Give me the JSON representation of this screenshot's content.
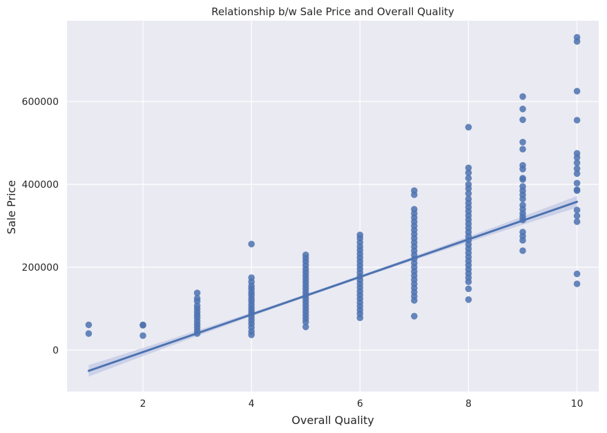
{
  "chart_data": {
    "type": "scatter",
    "title": "Relationship b/w Sale Price and Overall Quality",
    "xlabel": "Overall Quality",
    "ylabel": "Sale Price",
    "xlim": [
      0.6,
      10.4
    ],
    "ylim": [
      -100000,
      795000
    ],
    "xticks": [
      "2",
      "4",
      "6",
      "8",
      "10"
    ],
    "yticks": [
      "0",
      "200000",
      "400000",
      "600000"
    ],
    "grid": true,
    "legend": "none",
    "colors": {
      "background": "#eaeaf2",
      "grid": "#ffffff",
      "marker": "#4c72b0",
      "line": "#4c72b0",
      "band": "#c5cde6"
    },
    "regression": {
      "x": [
        1,
        10
      ],
      "y": [
        -50000,
        358000
      ],
      "ci_width_ends": 14000,
      "ci_width_mid": 3500
    },
    "points": [
      {
        "x": 1,
        "y": 61000
      },
      {
        "x": 1,
        "y": 40000
      },
      {
        "x": 2,
        "y": 60000
      },
      {
        "x": 2,
        "y": 35000
      },
      {
        "x": 2,
        "y": 61000
      },
      {
        "x": 3,
        "y": 138000
      },
      {
        "x": 3,
        "y": 125000
      },
      {
        "x": 3,
        "y": 118000
      },
      {
        "x": 3,
        "y": 107000
      },
      {
        "x": 3,
        "y": 100000
      },
      {
        "x": 3,
        "y": 92000
      },
      {
        "x": 3,
        "y": 85000
      },
      {
        "x": 3,
        "y": 78000
      },
      {
        "x": 3,
        "y": 70000
      },
      {
        "x": 3,
        "y": 62000
      },
      {
        "x": 3,
        "y": 55000
      },
      {
        "x": 3,
        "y": 47000
      },
      {
        "x": 3,
        "y": 40000
      },
      {
        "x": 4,
        "y": 256000
      },
      {
        "x": 4,
        "y": 175000
      },
      {
        "x": 4,
        "y": 165000
      },
      {
        "x": 4,
        "y": 155000
      },
      {
        "x": 4,
        "y": 148000
      },
      {
        "x": 4,
        "y": 140000
      },
      {
        "x": 4,
        "y": 133000
      },
      {
        "x": 4,
        "y": 125000
      },
      {
        "x": 4,
        "y": 118000
      },
      {
        "x": 4,
        "y": 110000
      },
      {
        "x": 4,
        "y": 102000
      },
      {
        "x": 4,
        "y": 95000
      },
      {
        "x": 4,
        "y": 88000
      },
      {
        "x": 4,
        "y": 80000
      },
      {
        "x": 4,
        "y": 72000
      },
      {
        "x": 4,
        "y": 64000
      },
      {
        "x": 4,
        "y": 55000
      },
      {
        "x": 4,
        "y": 45000
      },
      {
        "x": 4,
        "y": 37000
      },
      {
        "x": 5,
        "y": 230000
      },
      {
        "x": 5,
        "y": 222000
      },
      {
        "x": 5,
        "y": 214000
      },
      {
        "x": 5,
        "y": 205000
      },
      {
        "x": 5,
        "y": 196000
      },
      {
        "x": 5,
        "y": 188000
      },
      {
        "x": 5,
        "y": 180000
      },
      {
        "x": 5,
        "y": 172000
      },
      {
        "x": 5,
        "y": 164000
      },
      {
        "x": 5,
        "y": 156000
      },
      {
        "x": 5,
        "y": 148000
      },
      {
        "x": 5,
        "y": 140000
      },
      {
        "x": 5,
        "y": 132000
      },
      {
        "x": 5,
        "y": 124000
      },
      {
        "x": 5,
        "y": 116000
      },
      {
        "x": 5,
        "y": 108000
      },
      {
        "x": 5,
        "y": 100000
      },
      {
        "x": 5,
        "y": 92000
      },
      {
        "x": 5,
        "y": 84000
      },
      {
        "x": 5,
        "y": 76000
      },
      {
        "x": 5,
        "y": 68000
      },
      {
        "x": 5,
        "y": 56000
      },
      {
        "x": 6,
        "y": 278000
      },
      {
        "x": 6,
        "y": 270000
      },
      {
        "x": 6,
        "y": 260000
      },
      {
        "x": 6,
        "y": 250000
      },
      {
        "x": 6,
        "y": 241000
      },
      {
        "x": 6,
        "y": 232000
      },
      {
        "x": 6,
        "y": 223000
      },
      {
        "x": 6,
        "y": 214000
      },
      {
        "x": 6,
        "y": 205000
      },
      {
        "x": 6,
        "y": 196000
      },
      {
        "x": 6,
        "y": 187000
      },
      {
        "x": 6,
        "y": 178000
      },
      {
        "x": 6,
        "y": 169000
      },
      {
        "x": 6,
        "y": 160000
      },
      {
        "x": 6,
        "y": 151000
      },
      {
        "x": 6,
        "y": 142000
      },
      {
        "x": 6,
        "y": 133000
      },
      {
        "x": 6,
        "y": 124000
      },
      {
        "x": 6,
        "y": 115000
      },
      {
        "x": 6,
        "y": 106000
      },
      {
        "x": 6,
        "y": 97000
      },
      {
        "x": 6,
        "y": 88000
      },
      {
        "x": 6,
        "y": 78000
      },
      {
        "x": 7,
        "y": 385000
      },
      {
        "x": 7,
        "y": 375000
      },
      {
        "x": 7,
        "y": 340000
      },
      {
        "x": 7,
        "y": 330000
      },
      {
        "x": 7,
        "y": 320000
      },
      {
        "x": 7,
        "y": 310000
      },
      {
        "x": 7,
        "y": 300000
      },
      {
        "x": 7,
        "y": 290000
      },
      {
        "x": 7,
        "y": 280000
      },
      {
        "x": 7,
        "y": 270000
      },
      {
        "x": 7,
        "y": 260000
      },
      {
        "x": 7,
        "y": 250000
      },
      {
        "x": 7,
        "y": 240000
      },
      {
        "x": 7,
        "y": 230000
      },
      {
        "x": 7,
        "y": 220000
      },
      {
        "x": 7,
        "y": 210000
      },
      {
        "x": 7,
        "y": 200000
      },
      {
        "x": 7,
        "y": 190000
      },
      {
        "x": 7,
        "y": 180000
      },
      {
        "x": 7,
        "y": 170000
      },
      {
        "x": 7,
        "y": 160000
      },
      {
        "x": 7,
        "y": 150000
      },
      {
        "x": 7,
        "y": 140000
      },
      {
        "x": 7,
        "y": 130000
      },
      {
        "x": 7,
        "y": 120000
      },
      {
        "x": 7,
        "y": 82000
      },
      {
        "x": 8,
        "y": 538000
      },
      {
        "x": 8,
        "y": 440000
      },
      {
        "x": 8,
        "y": 428000
      },
      {
        "x": 8,
        "y": 415000
      },
      {
        "x": 8,
        "y": 400000
      },
      {
        "x": 8,
        "y": 390000
      },
      {
        "x": 8,
        "y": 378000
      },
      {
        "x": 8,
        "y": 365000
      },
      {
        "x": 8,
        "y": 355000
      },
      {
        "x": 8,
        "y": 345000
      },
      {
        "x": 8,
        "y": 335000
      },
      {
        "x": 8,
        "y": 325000
      },
      {
        "x": 8,
        "y": 315000
      },
      {
        "x": 8,
        "y": 305000
      },
      {
        "x": 8,
        "y": 295000
      },
      {
        "x": 8,
        "y": 285000
      },
      {
        "x": 8,
        "y": 275000
      },
      {
        "x": 8,
        "y": 265000
      },
      {
        "x": 8,
        "y": 255000
      },
      {
        "x": 8,
        "y": 245000
      },
      {
        "x": 8,
        "y": 235000
      },
      {
        "x": 8,
        "y": 225000
      },
      {
        "x": 8,
        "y": 215000
      },
      {
        "x": 8,
        "y": 205000
      },
      {
        "x": 8,
        "y": 195000
      },
      {
        "x": 8,
        "y": 185000
      },
      {
        "x": 8,
        "y": 175000
      },
      {
        "x": 8,
        "y": 165000
      },
      {
        "x": 8,
        "y": 148000
      },
      {
        "x": 8,
        "y": 122000
      },
      {
        "x": 9,
        "y": 612000
      },
      {
        "x": 9,
        "y": 582000
      },
      {
        "x": 9,
        "y": 556000
      },
      {
        "x": 9,
        "y": 502000
      },
      {
        "x": 9,
        "y": 485000
      },
      {
        "x": 9,
        "y": 446000
      },
      {
        "x": 9,
        "y": 437000
      },
      {
        "x": 9,
        "y": 415000
      },
      {
        "x": 9,
        "y": 412000
      },
      {
        "x": 9,
        "y": 395000
      },
      {
        "x": 9,
        "y": 385000
      },
      {
        "x": 9,
        "y": 375000
      },
      {
        "x": 9,
        "y": 365000
      },
      {
        "x": 9,
        "y": 350000
      },
      {
        "x": 9,
        "y": 340000
      },
      {
        "x": 9,
        "y": 330000
      },
      {
        "x": 9,
        "y": 322000
      },
      {
        "x": 9,
        "y": 314000
      },
      {
        "x": 9,
        "y": 285000
      },
      {
        "x": 9,
        "y": 275000
      },
      {
        "x": 9,
        "y": 265000
      },
      {
        "x": 9,
        "y": 240000
      },
      {
        "x": 10,
        "y": 755000
      },
      {
        "x": 10,
        "y": 745000
      },
      {
        "x": 10,
        "y": 625000
      },
      {
        "x": 10,
        "y": 555000
      },
      {
        "x": 10,
        "y": 475000
      },
      {
        "x": 10,
        "y": 465000
      },
      {
        "x": 10,
        "y": 452000
      },
      {
        "x": 10,
        "y": 438000
      },
      {
        "x": 10,
        "y": 426000
      },
      {
        "x": 10,
        "y": 403000
      },
      {
        "x": 10,
        "y": 387000
      },
      {
        "x": 10,
        "y": 385000
      },
      {
        "x": 10,
        "y": 338000
      },
      {
        "x": 10,
        "y": 324000
      },
      {
        "x": 10,
        "y": 310000
      },
      {
        "x": 10,
        "y": 184000
      },
      {
        "x": 10,
        "y": 160000
      }
    ]
  }
}
